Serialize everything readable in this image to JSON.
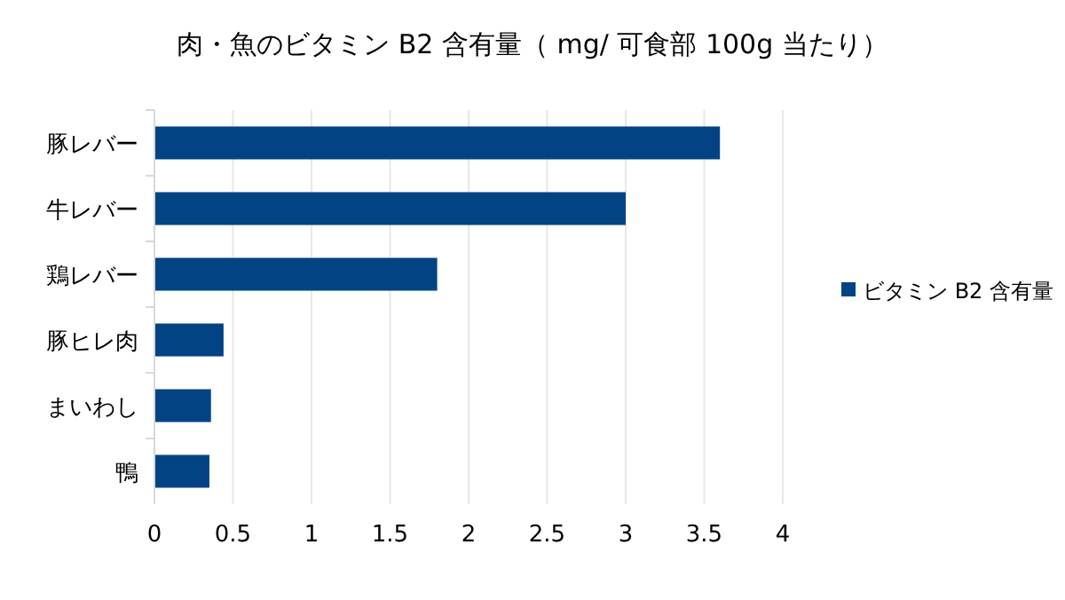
{
  "chart_data": {
    "type": "bar",
    "orientation": "horizontal",
    "title": "肉・魚のビタミン B2 含有量（ mg/ 可食部 100g 当たり）",
    "categories": [
      "豚レバー",
      "牛レバー",
      "鶏レバー",
      "豚ヒレ肉",
      "まいわし",
      "鴨"
    ],
    "series": [
      {
        "name": "ビタミン B2 含有量",
        "color": "#024384",
        "values": [
          3.6,
          3.0,
          1.8,
          0.44,
          0.36,
          0.35
        ]
      }
    ],
    "xlim": [
      0,
      4
    ],
    "xticks": [
      0,
      0.5,
      1,
      1.5,
      2,
      2.5,
      3,
      3.5,
      4
    ],
    "grid": "x",
    "legend": "right"
  }
}
